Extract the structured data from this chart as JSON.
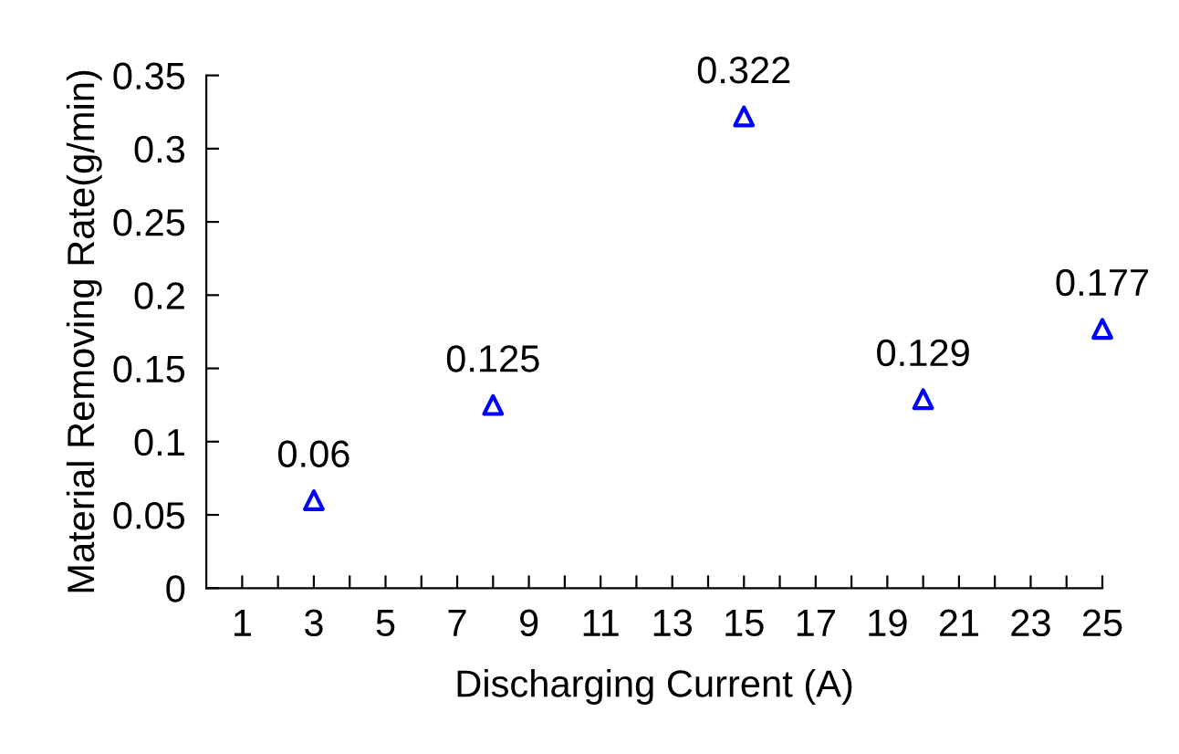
{
  "chart_data": {
    "type": "scatter",
    "xlabel": "Discharging Current (A)",
    "ylabel": "Material Removing Rate(g/min)",
    "x": [
      3,
      8,
      15,
      20,
      25
    ],
    "series": [
      {
        "color": "#0000ff",
        "values": [
          0.06,
          0.125,
          0.322,
          0.129,
          0.177
        ]
      }
    ],
    "marker": "triangle",
    "data_labels": true,
    "grid": false,
    "legend": false,
    "xlim": [
      0,
      25
    ],
    "xticks": [
      1,
      {
        "value": 2,
        "label": null
      },
      3,
      {
        "value": 4,
        "label": null
      },
      5,
      {
        "value": 6,
        "label": null
      },
      7,
      {
        "value": 8,
        "label": null
      },
      9,
      {
        "value": 10,
        "label": null
      },
      11,
      {
        "value": 12,
        "label": null
      },
      13,
      {
        "value": 14,
        "label": null
      },
      15,
      {
        "value": 16,
        "label": null
      },
      17,
      {
        "value": 18,
        "label": null
      },
      19,
      {
        "value": 20,
        "label": null
      },
      21,
      {
        "value": 22,
        "label": null
      },
      23,
      {
        "value": 24,
        "label": null
      },
      25
    ],
    "ylim": [
      0,
      0.35
    ],
    "yticks": [
      0,
      0.05,
      0.1,
      0.15,
      0.2,
      0.25,
      0.3,
      0.35
    ]
  }
}
